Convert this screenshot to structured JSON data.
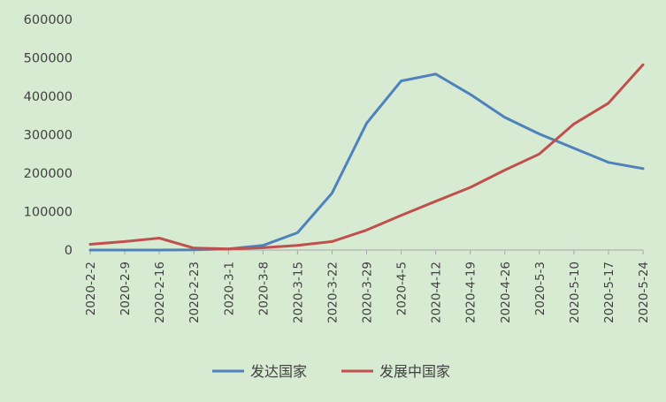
{
  "chart_data": {
    "type": "line",
    "title": "",
    "xlabel": "",
    "ylabel": "",
    "ylim": [
      0,
      600000
    ],
    "yticks": [
      "0",
      "100000",
      "200000",
      "300000",
      "400000",
      "500000",
      "600000"
    ],
    "categories": [
      "2020-2-2",
      "2020-2-9",
      "2020-2-16",
      "2020-2-23",
      "2020-3-1",
      "2020-3-8",
      "2020-3-15",
      "2020-3-22",
      "2020-3-29",
      "2020-4-5",
      "2020-4-12",
      "2020-4-19",
      "2020-4-26",
      "2020-5-3",
      "2020-5-10",
      "2020-5-17",
      "2020-5-24"
    ],
    "series": [
      {
        "name": "发达国家",
        "color": "#4f81bd",
        "values": [
          0,
          0,
          0,
          500,
          3000,
          12000,
          45000,
          148000,
          330000,
          440000,
          458000,
          405000,
          345000,
          302000,
          265000,
          228000,
          212000
        ]
      },
      {
        "name": "发展中国家",
        "color": "#c0504d",
        "values": [
          15000,
          22000,
          31000,
          5000,
          3000,
          6000,
          12000,
          22000,
          52000,
          90000,
          127000,
          163000,
          208000,
          250000,
          328000,
          382000,
          482000
        ]
      }
    ],
    "grid": false,
    "legend": "bottom"
  }
}
